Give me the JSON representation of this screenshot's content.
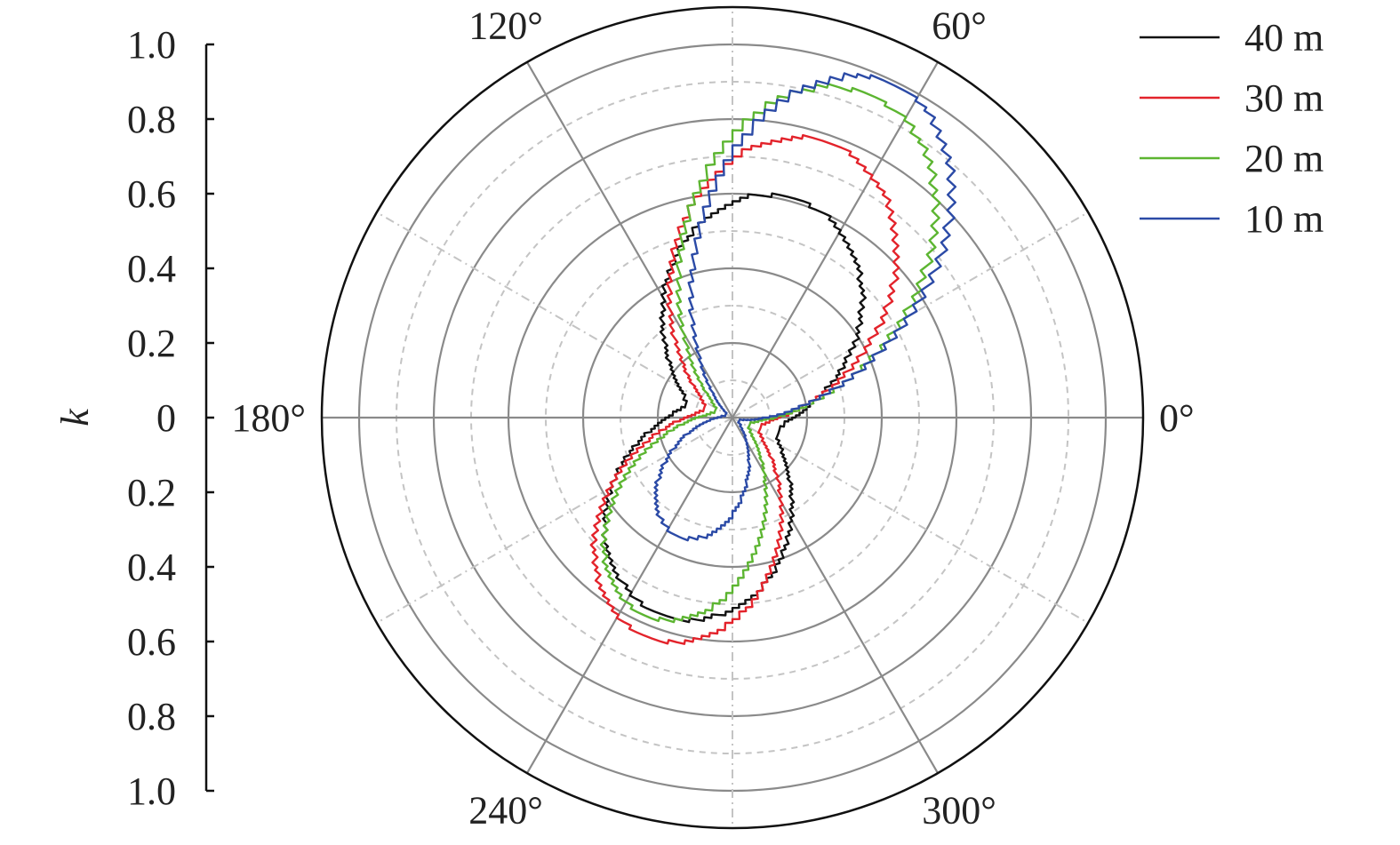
{
  "chart_data": {
    "type": "line",
    "subtype": "polar",
    "title": "",
    "radial_axis": {
      "label": "k",
      "range": [
        0,
        1.0
      ],
      "outer_limit": 1.1,
      "tick_labels_upper": [
        "1.0",
        "0.8",
        "0.6",
        "0.4",
        "0.2",
        "0"
      ],
      "tick_labels_lower": [
        "0.2",
        "0.4",
        "0.6",
        "0.8",
        "1.0"
      ],
      "major_circles": [
        0.2,
        0.4,
        0.6,
        0.8,
        1.0
      ],
      "minor_circles": [
        0.1,
        0.3,
        0.5,
        0.7,
        0.9
      ]
    },
    "angular_axis": {
      "unit": "degrees",
      "labels": [
        {
          "angle": 0,
          "text": "0°"
        },
        {
          "angle": 60,
          "text": "60°"
        },
        {
          "angle": 120,
          "text": "120°"
        },
        {
          "angle": 180,
          "text": "180°"
        },
        {
          "angle": 240,
          "text": "240°"
        },
        {
          "angle": 300,
          "text": "300°"
        }
      ],
      "major_spokes": [
        0,
        60,
        120,
        180,
        240,
        300
      ],
      "minor_spokes": [
        30,
        90,
        150,
        210,
        270,
        330
      ]
    },
    "legend": {
      "position": "top-right"
    },
    "series": [
      {
        "name": "40 m",
        "color": "#111111",
        "base": 0.13,
        "lobe1": {
          "angle": 74,
          "peak": 0.61
        },
        "lobe2": {
          "angle": 250,
          "peak": 0.56
        },
        "sharpness": 2.0
      },
      {
        "name": "30 m",
        "color": "#e3232b",
        "base": 0.08,
        "lobe1": {
          "angle": 70,
          "peak": 0.78
        },
        "lobe2": {
          "angle": 248,
          "peak": 0.63
        },
        "sharpness": 2.4
      },
      {
        "name": "20 m",
        "color": "#5cb531",
        "base": 0.05,
        "lobe1": {
          "angle": 66,
          "peak": 0.94
        },
        "lobe2": {
          "angle": 245,
          "peak": 0.58
        },
        "sharpness": 2.8
      },
      {
        "name": "10 m",
        "color": "#2b4aa6",
        "base": 0.02,
        "lobe1": {
          "angle": 63,
          "peak": 0.99
        },
        "lobe2": {
          "angle": 244,
          "peak": 0.35
        },
        "sharpness": 3.2
      }
    ]
  }
}
